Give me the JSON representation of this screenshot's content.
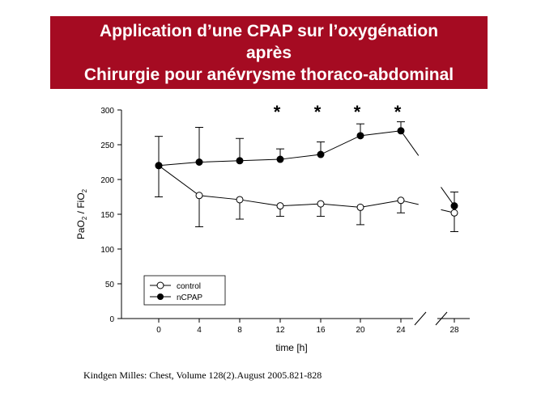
{
  "title_lines": [
    "Application d’une CPAP sur l’oxygénation",
    "après",
    "Chirurgie pour anévrysme thoraco-abdominal"
  ],
  "colors": {
    "title_bg": "#a50b22",
    "title_text": "#ffffff",
    "ink": "#000000"
  },
  "chart_data": {
    "type": "line",
    "xlabel": "time [h]",
    "ylabel_main": "PaO",
    "ylabel_sub1": "2",
    "ylabel_mid": " / FiO",
    "ylabel_sub2": "2",
    "categories": [
      "0",
      "4",
      "8",
      "12",
      "16",
      "20",
      "24",
      "28"
    ],
    "x": [
      0,
      4,
      8,
      12,
      16,
      20,
      24,
      28
    ],
    "ylim": [
      0,
      300
    ],
    "yticks": [
      0,
      50,
      100,
      150,
      200,
      250,
      300
    ],
    "axis_break_between": [
      24,
      28
    ],
    "legend_position": "bottom-left",
    "series": [
      {
        "name": "control",
        "marker": "open-circle",
        "values": [
          220,
          177,
          171,
          162,
          165,
          160,
          170,
          152
        ],
        "error_up": [
          42,
          0,
          0,
          0,
          0,
          0,
          0,
          0
        ],
        "error_down": [
          0,
          45,
          28,
          15,
          18,
          25,
          18,
          27
        ]
      },
      {
        "name": "nCPAP",
        "marker": "filled-circle",
        "values": [
          220,
          225,
          227,
          229,
          236,
          263,
          270,
          162
        ],
        "error_up": [
          0,
          50,
          32,
          15,
          18,
          17,
          13,
          20
        ],
        "error_down": [
          45,
          0,
          0,
          0,
          0,
          0,
          0,
          0
        ]
      }
    ],
    "significance": {
      "marker": "*",
      "x": [
        12,
        16,
        20,
        24
      ]
    }
  },
  "source": "Kindgen Milles: Chest, Volume 128(2).August 2005.821-828"
}
